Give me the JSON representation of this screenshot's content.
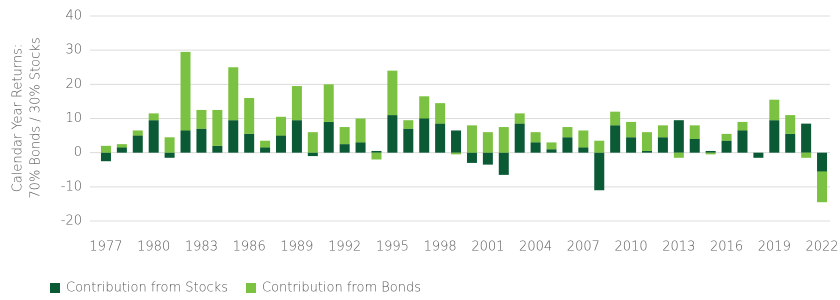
{
  "chart_data": {
    "type": "bar",
    "stacked": true,
    "ylabel": [
      "Calendar Year Returns:",
      "70% Bonds / 30% Stocks"
    ],
    "categories": [
      "1977",
      null,
      null,
      "1980",
      null,
      null,
      "1983",
      null,
      null,
      "1986",
      null,
      null,
      "1989",
      null,
      null,
      "1992",
      null,
      null,
      "1995",
      null,
      null,
      "1998",
      null,
      null,
      "2001",
      null,
      null,
      "2004",
      null,
      null,
      "2007",
      null,
      null,
      "2010",
      null,
      null,
      "2013",
      null,
      null,
      "2016",
      null,
      null,
      "2019",
      null,
      null,
      "2022"
    ],
    "series": [
      {
        "name": "Contribution from Stocks",
        "color": "#0b5a36",
        "values": [
          -2.5,
          1.5,
          5,
          9.5,
          -1.5,
          6.5,
          7,
          2,
          9.5,
          5.5,
          1.5,
          5,
          9.5,
          -1,
          9,
          2.5,
          3,
          0.5,
          11,
          7,
          10,
          8.5,
          6.5,
          -3,
          -3.5,
          -6.5,
          8.5,
          3,
          1,
          4.5,
          1.5,
          -11,
          8,
          4.5,
          0.5,
          4.5,
          9.5,
          4,
          0.5,
          3.5,
          6.5,
          -1.5,
          9.5,
          5.5,
          8.5,
          -5.5
        ]
      },
      {
        "name": "Contribution from Bonds",
        "color": "#7cc242",
        "values": [
          2,
          1,
          1.5,
          2,
          4.5,
          23,
          5.5,
          10.5,
          15.5,
          10.5,
          2,
          5.5,
          10,
          6,
          11,
          5,
          7,
          -2,
          13,
          2.5,
          6.5,
          6,
          -0.5,
          8,
          6,
          7.5,
          3,
          3,
          2,
          3,
          5,
          3.5,
          4,
          4.5,
          5.5,
          3.5,
          -1.5,
          4,
          -0.5,
          2,
          2.5,
          0,
          6,
          5.5,
          -1.5,
          -9
        ]
      }
    ],
    "ylim": [
      -20,
      40
    ],
    "yticks": [
      -20,
      -10,
      0,
      10,
      20,
      30,
      40
    ],
    "grid": true
  }
}
